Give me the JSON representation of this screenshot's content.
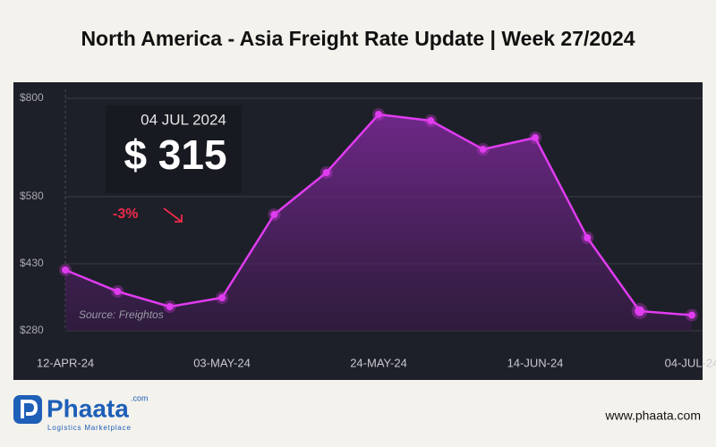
{
  "chart_data": {
    "type": "line",
    "title": "North America - Asia Freight Rate Update | Week 27/2024",
    "categories": [
      "12-APR-24",
      null,
      null,
      "03-MAY-24",
      null,
      null,
      "24-MAY-24",
      null,
      null,
      "14-JUN-24",
      null,
      null,
      "04-JUL-24"
    ],
    "values": [
      416,
      368,
      334,
      354,
      540,
      634,
      764,
      750,
      686,
      712,
      488,
      324,
      315
    ],
    "color": "#e03cf0",
    "ylim": [
      280,
      800
    ],
    "yticks": [
      {
        "value": 280,
        "label": "$280"
      },
      {
        "value": 430,
        "label": "$430"
      },
      {
        "value": 580,
        "label": "$580"
      },
      {
        "value": 800,
        "label": "$800"
      }
    ],
    "grid": true,
    "callout": {
      "date": "04 JUL 2024",
      "price": "$ 315",
      "change": "-3%"
    },
    "source": "Source: Freightos"
  },
  "branding": {
    "logo": "Phaata",
    "logo_suffix": ".com",
    "tagline": "Logistics Marketplace",
    "website": "www.phaata.com"
  }
}
